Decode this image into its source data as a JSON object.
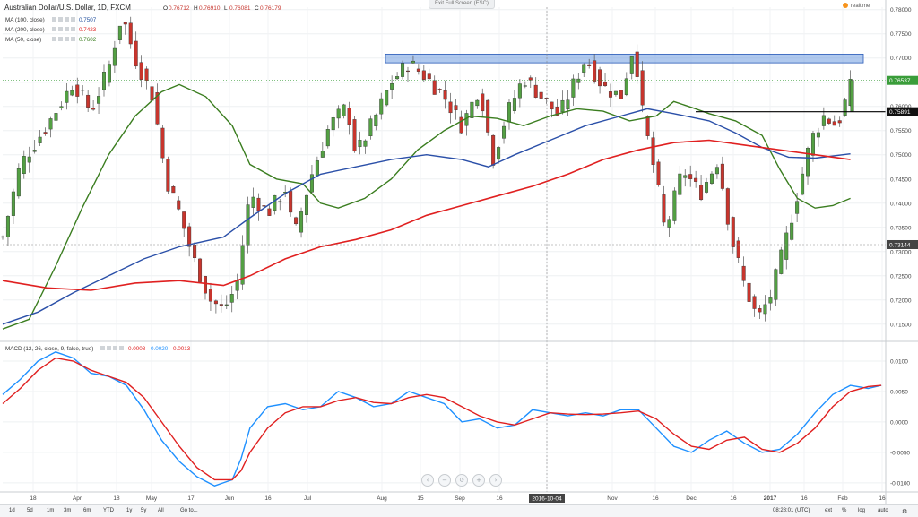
{
  "header": {
    "symbol_title": "Australian Dollar/U.S. Dollar, 1D, FXCM",
    "ohlc": [
      {
        "key": "O",
        "value": "0.76712"
      },
      {
        "key": "H",
        "value": "0.76910"
      },
      {
        "key": "L",
        "value": "0.76081"
      },
      {
        "key": "C",
        "value": "0.76179"
      }
    ],
    "fullscreen_tag": "Exit Full Screen (ESC)",
    "brand": "realtime"
  },
  "indicators": [
    {
      "label": "MA (100, close)",
      "value": "0.7507",
      "color": "#1f4e9c"
    },
    {
      "label": "MA (200, close)",
      "value": "0.7423",
      "color": "#e02020"
    },
    {
      "label": "MA (50, close)",
      "value": "0.7602",
      "color": "#3a7d1f"
    }
  ],
  "macd": {
    "label": "MACD (12, 26, close, 9, false, true)",
    "values": [
      {
        "value": "0.0008",
        "color": "#e02020"
      },
      {
        "value": "0.0020",
        "color": "#1e90ff"
      },
      {
        "value": "0.0013",
        "color": "#e02020"
      }
    ]
  },
  "price_labels": {
    "current": "0.76537",
    "resistance": "0.75891",
    "crosshair": "0.73144"
  },
  "crosshair_date": "2016-10-04",
  "toolbar": {
    "left": [
      "1d",
      "5d",
      "1m",
      "3m",
      "6m",
      "YTD",
      "1y",
      "5y",
      "All",
      "Go to..."
    ],
    "time": "08:28:01 (UTC)",
    "right": [
      "ext",
      "%",
      "log",
      "auto"
    ]
  },
  "chart_data": {
    "type": "candlestick",
    "title": "Australian Dollar/U.S. Dollar, 1D, FXCM",
    "price_axis": {
      "ticks": [
        "0.78000",
        "0.77500",
        "0.77000",
        "0.76500",
        "0.76000",
        "0.75500",
        "0.75000",
        "0.74500",
        "0.74000",
        "0.73500",
        "0.73000",
        "0.72500",
        "0.72000",
        "0.71500"
      ],
      "range": [
        0.712,
        0.7805
      ]
    },
    "macd_axis": {
      "ticks": [
        "0.0100",
        "0.0050",
        "0.0000",
        "-0.0050",
        "-0.0100"
      ],
      "range": [
        -0.0115,
        0.0125
      ]
    },
    "time_axis": {
      "ticks": [
        "18",
        "Apr",
        "18",
        "May",
        "17",
        "Jun",
        "16",
        "Jul",
        "Aug",
        "15",
        "Sep",
        "16",
        "2016-10-04",
        "Nov",
        "16",
        "Dec",
        "16",
        "2017",
        "16",
        "Feb",
        "16"
      ]
    },
    "resistance_zone": [
      0.769,
      0.7708
    ],
    "support_line": 0.7589,
    "ma50": [
      [
        0,
        0.714
      ],
      [
        0.03,
        0.716
      ],
      [
        0.06,
        0.727
      ],
      [
        0.09,
        0.739
      ],
      [
        0.12,
        0.75
      ],
      [
        0.15,
        0.758
      ],
      [
        0.18,
        0.763
      ],
      [
        0.2,
        0.7645
      ],
      [
        0.23,
        0.762
      ],
      [
        0.26,
        0.756
      ],
      [
        0.28,
        0.748
      ],
      [
        0.31,
        0.745
      ],
      [
        0.34,
        0.744
      ],
      [
        0.36,
        0.74
      ],
      [
        0.38,
        0.739
      ],
      [
        0.41,
        0.741
      ],
      [
        0.44,
        0.745
      ],
      [
        0.47,
        0.751
      ],
      [
        0.5,
        0.755
      ],
      [
        0.53,
        0.758
      ],
      [
        0.56,
        0.7575
      ],
      [
        0.59,
        0.756
      ],
      [
        0.62,
        0.758
      ],
      [
        0.65,
        0.7595
      ],
      [
        0.68,
        0.759
      ],
      [
        0.71,
        0.757
      ],
      [
        0.74,
        0.758
      ],
      [
        0.76,
        0.761
      ],
      [
        0.78,
        0.7598
      ],
      [
        0.8,
        0.7585
      ],
      [
        0.83,
        0.757
      ],
      [
        0.86,
        0.754
      ],
      [
        0.88,
        0.747
      ],
      [
        0.9,
        0.741
      ],
      [
        0.92,
        0.739
      ],
      [
        0.94,
        0.7395
      ],
      [
        0.96,
        0.741
      ]
    ],
    "ma100": [
      [
        0,
        0.715
      ],
      [
        0.04,
        0.7175
      ],
      [
        0.08,
        0.7215
      ],
      [
        0.12,
        0.725
      ],
      [
        0.16,
        0.7285
      ],
      [
        0.2,
        0.731
      ],
      [
        0.25,
        0.733
      ],
      [
        0.28,
        0.737
      ],
      [
        0.32,
        0.742
      ],
      [
        0.36,
        0.746
      ],
      [
        0.4,
        0.7475
      ],
      [
        0.44,
        0.749
      ],
      [
        0.48,
        0.75
      ],
      [
        0.52,
        0.749
      ],
      [
        0.55,
        0.7475
      ],
      [
        0.58,
        0.75
      ],
      [
        0.62,
        0.753
      ],
      [
        0.66,
        0.756
      ],
      [
        0.7,
        0.758
      ],
      [
        0.73,
        0.7595
      ],
      [
        0.76,
        0.7585
      ],
      [
        0.8,
        0.757
      ],
      [
        0.83,
        0.7545
      ],
      [
        0.86,
        0.7515
      ],
      [
        0.89,
        0.7495
      ],
      [
        0.92,
        0.7493
      ],
      [
        0.96,
        0.7502
      ]
    ],
    "ma200": [
      [
        0,
        0.724
      ],
      [
        0.05,
        0.7225
      ],
      [
        0.1,
        0.722
      ],
      [
        0.15,
        0.7235
      ],
      [
        0.2,
        0.724
      ],
      [
        0.25,
        0.723
      ],
      [
        0.28,
        0.725
      ],
      [
        0.32,
        0.7285
      ],
      [
        0.36,
        0.731
      ],
      [
        0.4,
        0.7325
      ],
      [
        0.44,
        0.7345
      ],
      [
        0.48,
        0.7375
      ],
      [
        0.52,
        0.7395
      ],
      [
        0.56,
        0.7415
      ],
      [
        0.6,
        0.7435
      ],
      [
        0.64,
        0.746
      ],
      [
        0.68,
        0.749
      ],
      [
        0.72,
        0.751
      ],
      [
        0.76,
        0.7525
      ],
      [
        0.8,
        0.753
      ],
      [
        0.84,
        0.752
      ],
      [
        0.88,
        0.751
      ],
      [
        0.92,
        0.75
      ],
      [
        0.96,
        0.749
      ]
    ],
    "macd_line": [
      [
        0,
        0.0045
      ],
      [
        0.02,
        0.007
      ],
      [
        0.04,
        0.01
      ],
      [
        0.06,
        0.0115
      ],
      [
        0.08,
        0.0105
      ],
      [
        0.1,
        0.008
      ],
      [
        0.12,
        0.0075
      ],
      [
        0.14,
        0.006
      ],
      [
        0.16,
        0.002
      ],
      [
        0.18,
        -0.003
      ],
      [
        0.2,
        -0.0065
      ],
      [
        0.22,
        -0.009
      ],
      [
        0.24,
        -0.0105
      ],
      [
        0.26,
        -0.0095
      ],
      [
        0.27,
        -0.006
      ],
      [
        0.28,
        -0.001
      ],
      [
        0.3,
        0.0025
      ],
      [
        0.32,
        0.003
      ],
      [
        0.34,
        0.002
      ],
      [
        0.36,
        0.0025
      ],
      [
        0.38,
        0.005
      ],
      [
        0.4,
        0.004
      ],
      [
        0.42,
        0.0025
      ],
      [
        0.44,
        0.003
      ],
      [
        0.46,
        0.005
      ],
      [
        0.48,
        0.004
      ],
      [
        0.5,
        0.003
      ],
      [
        0.52,
        0.0
      ],
      [
        0.54,
        0.0005
      ],
      [
        0.56,
        -0.001
      ],
      [
        0.58,
        -0.0005
      ],
      [
        0.6,
        0.002
      ],
      [
        0.62,
        0.0015
      ],
      [
        0.64,
        0.001
      ],
      [
        0.66,
        0.0015
      ],
      [
        0.68,
        0.001
      ],
      [
        0.7,
        0.002
      ],
      [
        0.72,
        0.002
      ],
      [
        0.74,
        -0.001
      ],
      [
        0.76,
        -0.004
      ],
      [
        0.78,
        -0.005
      ],
      [
        0.8,
        -0.003
      ],
      [
        0.82,
        -0.0015
      ],
      [
        0.84,
        -0.0035
      ],
      [
        0.86,
        -0.005
      ],
      [
        0.88,
        -0.0045
      ],
      [
        0.9,
        -0.002
      ],
      [
        0.92,
        0.0015
      ],
      [
        0.94,
        0.0045
      ],
      [
        0.96,
        0.006
      ],
      [
        0.98,
        0.0055
      ],
      [
        0.995,
        0.006
      ]
    ],
    "signal_line": [
      [
        0,
        0.003
      ],
      [
        0.02,
        0.0055
      ],
      [
        0.04,
        0.0085
      ],
      [
        0.06,
        0.0105
      ],
      [
        0.08,
        0.01
      ],
      [
        0.1,
        0.0085
      ],
      [
        0.12,
        0.0075
      ],
      [
        0.14,
        0.0065
      ],
      [
        0.16,
        0.004
      ],
      [
        0.18,
        0.0
      ],
      [
        0.2,
        -0.004
      ],
      [
        0.22,
        -0.0075
      ],
      [
        0.24,
        -0.0095
      ],
      [
        0.26,
        -0.0095
      ],
      [
        0.27,
        -0.008
      ],
      [
        0.28,
        -0.005
      ],
      [
        0.3,
        -0.001
      ],
      [
        0.32,
        0.0015
      ],
      [
        0.34,
        0.0025
      ],
      [
        0.36,
        0.0025
      ],
      [
        0.38,
        0.0035
      ],
      [
        0.4,
        0.004
      ],
      [
        0.42,
        0.0032
      ],
      [
        0.44,
        0.003
      ],
      [
        0.46,
        0.004
      ],
      [
        0.48,
        0.0045
      ],
      [
        0.5,
        0.004
      ],
      [
        0.52,
        0.0025
      ],
      [
        0.54,
        0.001
      ],
      [
        0.56,
        0.0
      ],
      [
        0.58,
        -0.0005
      ],
      [
        0.6,
        0.0005
      ],
      [
        0.62,
        0.0015
      ],
      [
        0.64,
        0.0013
      ],
      [
        0.66,
        0.0012
      ],
      [
        0.68,
        0.0013
      ],
      [
        0.7,
        0.0015
      ],
      [
        0.72,
        0.0018
      ],
      [
        0.74,
        0.0005
      ],
      [
        0.76,
        -0.002
      ],
      [
        0.78,
        -0.004
      ],
      [
        0.8,
        -0.0045
      ],
      [
        0.82,
        -0.003
      ],
      [
        0.84,
        -0.0025
      ],
      [
        0.86,
        -0.0045
      ],
      [
        0.88,
        -0.005
      ],
      [
        0.9,
        -0.0035
      ],
      [
        0.92,
        -0.001
      ],
      [
        0.94,
        0.0025
      ],
      [
        0.96,
        0.005
      ],
      [
        0.98,
        0.0058
      ],
      [
        0.995,
        0.006
      ]
    ]
  }
}
